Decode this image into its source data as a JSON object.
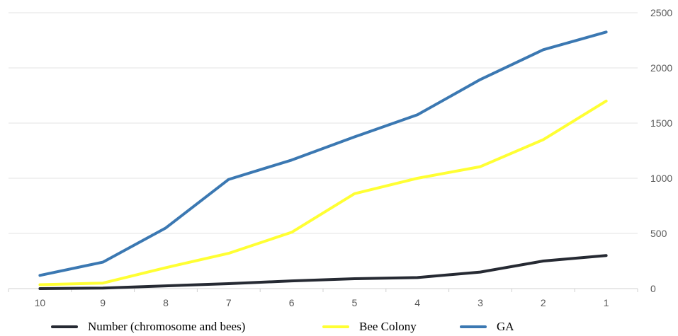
{
  "chart_data": {
    "type": "line",
    "categories": [
      "10",
      "9",
      "8",
      "7",
      "6",
      "5",
      "4",
      "3",
      "2",
      "1"
    ],
    "ylim": [
      0,
      2500
    ],
    "yticks": [
      "0",
      "500",
      "1000",
      "1500",
      "2000",
      "2500"
    ],
    "y_axis_side": "right",
    "grid": true,
    "legend_position": "bottom",
    "series": [
      {
        "name": "Number (chromosome and bees)",
        "color": "#262a33",
        "values": [
          0,
          5,
          25,
          45,
          70,
          90,
          100,
          150,
          250,
          300
        ]
      },
      {
        "name": "Bee Colony",
        "color": "#ffff33",
        "values": [
          35,
          50,
          190,
          320,
          510,
          860,
          1000,
          1105,
          1350,
          1700
        ]
      },
      {
        "name": "GA",
        "color": "#3b78b2",
        "values": [
          120,
          240,
          550,
          990,
          1165,
          1375,
          1575,
          1895,
          2165,
          2325
        ]
      }
    ]
  }
}
